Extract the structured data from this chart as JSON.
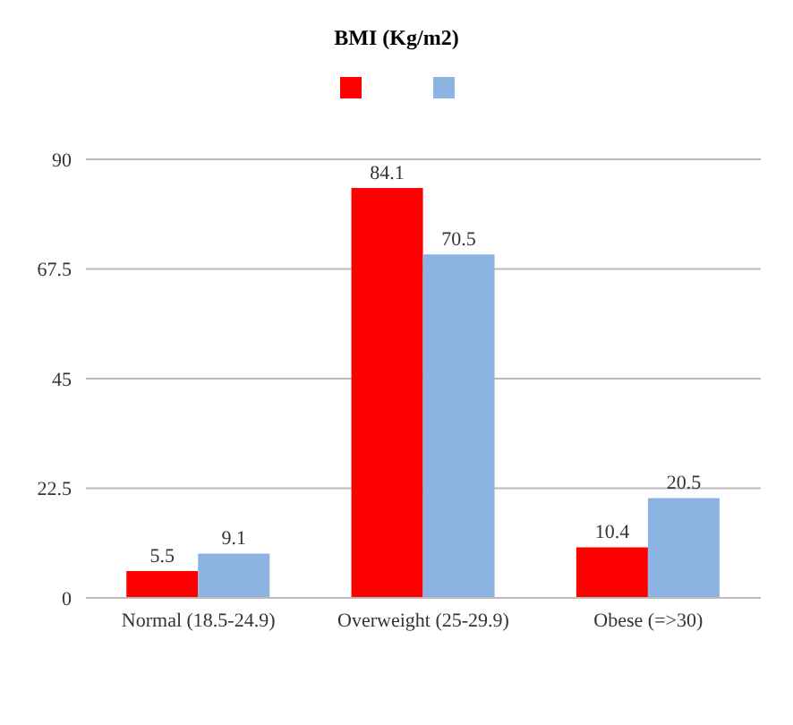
{
  "chart_data": {
    "type": "bar",
    "title": "BMI (Kg/m2)",
    "categories": [
      "Normal (18.5-24.9)",
      "Overweight (25-29.9)",
      "Obese (=>30)"
    ],
    "series": [
      {
        "color": "#ff0000",
        "values": [
          5.5,
          84.1,
          10.4
        ]
      },
      {
        "color": "#8db3e2",
        "values": [
          9.1,
          70.5,
          20.5
        ]
      }
    ],
    "ylim": [
      0,
      90
    ],
    "yticks": [
      0,
      22.5,
      45,
      67.5,
      90
    ],
    "grid": "y",
    "data_labels": true
  }
}
